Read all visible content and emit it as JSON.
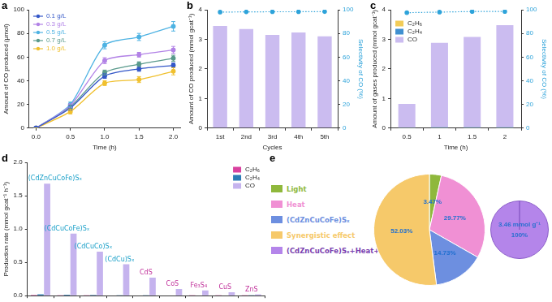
{
  "chart_data": [
    {
      "panel": "a",
      "type": "line",
      "x": [
        0,
        0.5,
        1,
        1.5,
        2
      ],
      "x_label": "Time (h)",
      "y_label": "Amount of CO produced (μmol)",
      "xlim": [
        -0.1,
        2.1
      ],
      "xticks": [
        {
          "value": 0,
          "label": "0.0"
        },
        0.5,
        {
          "value": 1,
          "label": "1.0"
        },
        1.5,
        {
          "value": 2,
          "label": "2.0"
        }
      ],
      "ylim": [
        0,
        100
      ],
      "yticks": [
        0,
        20,
        40,
        60,
        80,
        100
      ],
      "grid": false,
      "legend": "top-left",
      "series": [
        {
          "name": "0.1 g/L",
          "color": "#3558c8",
          "marker": "circle",
          "values": [
            0,
            17,
            44,
            50,
            53
          ],
          "errors": [
            0,
            1.5,
            2,
            2,
            2
          ]
        },
        {
          "name": "0.3 g/L",
          "color": "#b282e6",
          "marker": "circle",
          "values": [
            0,
            19,
            57,
            62,
            66
          ],
          "errors": [
            0,
            1.5,
            2.5,
            2,
            3
          ]
        },
        {
          "name": "0.5 g/L",
          "color": "#4fb3e3",
          "marker": "circle",
          "values": [
            0,
            20,
            70,
            77,
            86
          ],
          "errors": [
            0,
            2,
            3,
            3,
            4
          ]
        },
        {
          "name": "0.7 g/L",
          "color": "#5a9a8c",
          "marker": "circle",
          "values": [
            0,
            18,
            47,
            54,
            59
          ],
          "errors": [
            0,
            1.5,
            2,
            2,
            2.5
          ]
        },
        {
          "name": "1.0 g/L",
          "color": "#f0c02e",
          "marker": "circle",
          "values": [
            0,
            14,
            38,
            41,
            48
          ],
          "errors": [
            0,
            2,
            2,
            2.5,
            3
          ]
        }
      ]
    },
    {
      "panel": "b",
      "type": "bar",
      "categories": [
        "1st",
        "2nd",
        "3rd",
        "4th",
        "5th"
      ],
      "x_label": "Cycles",
      "y_label": "Amount of CO produced (mmol gcat⁻¹)",
      "y2_label": "Selectivity of CO (%)",
      "ylim": [
        0,
        4
      ],
      "yticks": [
        0,
        1,
        2,
        3,
        4
      ],
      "y2lim": [
        0,
        100
      ],
      "y2ticks": [
        0,
        20,
        40,
        60,
        80,
        100
      ],
      "grid": false,
      "series": [
        {
          "type": "bar",
          "color": "#cbbcf0",
          "values": [
            3.45,
            3.35,
            3.15,
            3.23,
            3.1
          ]
        },
        {
          "type": "line",
          "axis": "y2",
          "color": "#2ea3da",
          "marker": "circle",
          "line_style": "dotted",
          "values": [
            98,
            98.2,
            98.3,
            98.3,
            98.4
          ]
        }
      ]
    },
    {
      "panel": "c",
      "type": "bar",
      "categories": [
        "0.5",
        "1",
        "1.5",
        "2"
      ],
      "x_label": "Time (h)",
      "y_label": "Amount of gases produced (mmol gcat⁻¹)",
      "y2_label": "Selectivity of CO (%)",
      "ylim": [
        0,
        4
      ],
      "yticks": [
        0,
        1,
        2,
        3,
        4
      ],
      "y2lim": [
        0,
        100
      ],
      "y2ticks": [
        0,
        20,
        40,
        60,
        80,
        100
      ],
      "grid": false,
      "stacked": true,
      "legend": "top-left",
      "series": [
        {
          "name": "C₂H₆",
          "type": "bar",
          "color": "#f2cc58",
          "values": [
            0.01,
            0.01,
            0.01,
            0.01
          ]
        },
        {
          "name": "C₂H₄",
          "type": "bar",
          "color": "#3f8fd0",
          "values": [
            0.01,
            0.02,
            0.02,
            0.02
          ]
        },
        {
          "name": "CO",
          "type": "bar",
          "color": "#cbbcf0",
          "values": [
            0.8,
            2.85,
            3.05,
            3.45
          ]
        },
        {
          "type": "line",
          "axis": "y2",
          "color": "#2ea3da",
          "marker": "circle",
          "line_style": "dotted",
          "values": [
            97.5,
            98,
            98.5,
            98.5
          ]
        }
      ]
    },
    {
      "panel": "d",
      "type": "bar",
      "categories": [
        "(CdZnCuCoFe)Sₓ",
        "(CdCuCoFe)Sₓ",
        "(CdCuCo)Sₓ",
        "(CdCu)Sₓ",
        "CdS",
        "CoS",
        "Fe₃S₄",
        "CuS",
        "ZnS"
      ],
      "y_label": "Production rate (mmol gcat⁻¹ h⁻¹)",
      "ylim": [
        0,
        2
      ],
      "yticks": [
        {
          "value": 0,
          "label": "0.0"
        },
        0.5,
        {
          "value": 1,
          "label": "1.0"
        },
        1.5,
        {
          "value": 2,
          "label": "2.0"
        }
      ],
      "grid": false,
      "tick_labels": "y",
      "legend": "top-right",
      "series": [
        {
          "name": "C₂H₆",
          "color": "#d9419f",
          "values": [
            0.012,
            0.01,
            0.008,
            0.006,
            0.005,
            0.004,
            0.003,
            0.003,
            0.002
          ]
        },
        {
          "name": "C₂H₄",
          "color": "#2c7bb6",
          "values": [
            0.02,
            0.015,
            0.012,
            0.01,
            0.008,
            0.006,
            0.005,
            0.004,
            0.003
          ]
        },
        {
          "name": "CO",
          "color": "#c5b3ee",
          "values": [
            1.68,
            0.93,
            0.66,
            0.47,
            0.27,
            0.1,
            0.08,
            0.05,
            0.02
          ]
        }
      ]
    },
    {
      "panel": "e",
      "type": "pie",
      "categories": [
        "Light",
        "Heat",
        "(CdZnCuCoFe)Sₓ",
        "Synergistic effect"
      ],
      "values": [
        3.47,
        29.77,
        14.73,
        52.03
      ],
      "value_labels": [
        "3.47%",
        "29.77%",
        "14.73%",
        "52.03%"
      ],
      "colors": [
        "#8fb83c",
        "#f090d4",
        "#6d8fe0",
        "#f6c96a"
      ],
      "data_labels": true,
      "legend": "left",
      "total": {
        "name": "(CdZnCuCoFe)Sₓ+Heat+Light",
        "color": "#b485ea",
        "value": 100,
        "value_label": "100%",
        "amount_label": "3.46 mmol g⁻¹"
      }
    }
  ]
}
